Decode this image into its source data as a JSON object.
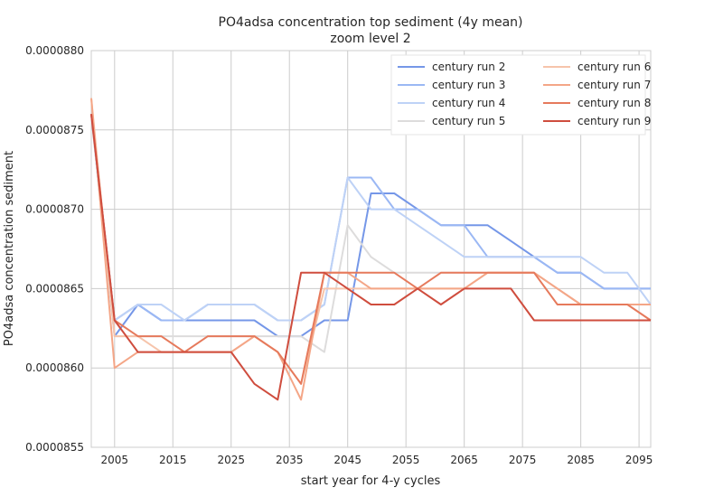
{
  "chart_data": {
    "type": "line",
    "title": "PO4adsa concentration top sediment (4y mean)",
    "subtitle": "zoom level 2",
    "xlabel": "start year for 4-y cycles",
    "ylabel": "PO4adsa concentration sediment",
    "xlim": [
      2001,
      2097
    ],
    "ylim": [
      8.55e-05,
      8.8e-05
    ],
    "x_ticks": [
      2005,
      2015,
      2025,
      2035,
      2045,
      2055,
      2065,
      2075,
      2085,
      2095
    ],
    "y_ticks": [
      8.55e-05,
      8.6e-05,
      8.65e-05,
      8.7e-05,
      8.75e-05,
      8.8e-05
    ],
    "x_tick_labels": [
      "2005",
      "2015",
      "2025",
      "2035",
      "2045",
      "2055",
      "2065",
      "2075",
      "2085",
      "2095"
    ],
    "y_tick_labels": [
      "0.0000855",
      "0.0000860",
      "0.0000865",
      "0.0000870",
      "0.0000875",
      "0.0000880"
    ],
    "grid": true,
    "legend_position": "top-right",
    "x": [
      2001,
      2005,
      2009,
      2013,
      2017,
      2021,
      2025,
      2029,
      2033,
      2037,
      2041,
      2045,
      2049,
      2053,
      2057,
      2061,
      2065,
      2069,
      2073,
      2077,
      2081,
      2085,
      2089,
      2093,
      2097
    ],
    "series": [
      {
        "name": "century run 2",
        "color": "#7597e8",
        "values": [
          8.76e-05,
          8.62e-05,
          8.64e-05,
          8.63e-05,
          8.63e-05,
          8.63e-05,
          8.63e-05,
          8.63e-05,
          8.62e-05,
          8.62e-05,
          8.63e-05,
          8.63e-05,
          8.71e-05,
          8.71e-05,
          8.7e-05,
          8.69e-05,
          8.69e-05,
          8.69e-05,
          8.68e-05,
          8.67e-05,
          8.66e-05,
          8.66e-05,
          8.65e-05,
          8.65e-05,
          8.65e-05
        ]
      },
      {
        "name": "century run 3",
        "color": "#9bb8f4",
        "values": [
          8.76e-05,
          8.63e-05,
          8.64e-05,
          8.63e-05,
          8.63e-05,
          8.64e-05,
          8.64e-05,
          8.64e-05,
          8.63e-05,
          8.63e-05,
          8.64e-05,
          8.72e-05,
          8.72e-05,
          8.7e-05,
          8.7e-05,
          8.69e-05,
          8.69e-05,
          8.67e-05,
          8.67e-05,
          8.67e-05,
          8.66e-05,
          8.66e-05,
          8.65e-05,
          8.65e-05,
          8.65e-05
        ]
      },
      {
        "name": "century run 4",
        "color": "#bed2f6",
        "values": [
          8.76e-05,
          8.63e-05,
          8.64e-05,
          8.64e-05,
          8.63e-05,
          8.64e-05,
          8.64e-05,
          8.64e-05,
          8.63e-05,
          8.63e-05,
          8.64e-05,
          8.72e-05,
          8.7e-05,
          8.7e-05,
          8.69e-05,
          8.68e-05,
          8.67e-05,
          8.67e-05,
          8.67e-05,
          8.67e-05,
          8.67e-05,
          8.67e-05,
          8.66e-05,
          8.66e-05,
          8.64e-05
        ]
      },
      {
        "name": "century run 5",
        "color": "#dddcdc",
        "values": [
          8.76e-05,
          8.62e-05,
          8.62e-05,
          8.62e-05,
          8.62e-05,
          8.62e-05,
          8.62e-05,
          8.62e-05,
          8.62e-05,
          8.62e-05,
          8.61e-05,
          8.69e-05,
          8.67e-05,
          8.66e-05,
          8.66e-05,
          8.66e-05,
          8.66e-05,
          8.66e-05,
          8.66e-05,
          8.66e-05,
          8.65e-05,
          8.64e-05,
          8.64e-05,
          8.64e-05,
          8.64e-05
        ]
      },
      {
        "name": "century run 6",
        "color": "#f6c4ab",
        "values": [
          8.77e-05,
          8.62e-05,
          8.62e-05,
          8.61e-05,
          8.61e-05,
          8.61e-05,
          8.61e-05,
          8.62e-05,
          8.61e-05,
          8.59e-05,
          8.65e-05,
          8.65e-05,
          8.65e-05,
          8.65e-05,
          8.65e-05,
          8.65e-05,
          8.65e-05,
          8.66e-05,
          8.66e-05,
          8.66e-05,
          8.65e-05,
          8.64e-05,
          8.64e-05,
          8.64e-05,
          8.64e-05
        ]
      },
      {
        "name": "century run 7",
        "color": "#f4a687",
        "values": [
          8.77e-05,
          8.6e-05,
          8.61e-05,
          8.61e-05,
          8.61e-05,
          8.61e-05,
          8.61e-05,
          8.62e-05,
          8.61e-05,
          8.58e-05,
          8.66e-05,
          8.66e-05,
          8.65e-05,
          8.65e-05,
          8.65e-05,
          8.65e-05,
          8.65e-05,
          8.66e-05,
          8.66e-05,
          8.66e-05,
          8.65e-05,
          8.64e-05,
          8.64e-05,
          8.64e-05,
          8.64e-05
        ]
      },
      {
        "name": "century run 8",
        "color": "#e67a5c",
        "values": [
          8.76e-05,
          8.63e-05,
          8.62e-05,
          8.62e-05,
          8.61e-05,
          8.62e-05,
          8.62e-05,
          8.62e-05,
          8.61e-05,
          8.59e-05,
          8.66e-05,
          8.66e-05,
          8.66e-05,
          8.66e-05,
          8.65e-05,
          8.66e-05,
          8.66e-05,
          8.66e-05,
          8.66e-05,
          8.66e-05,
          8.64e-05,
          8.64e-05,
          8.64e-05,
          8.64e-05,
          8.63e-05
        ]
      },
      {
        "name": "century run 9",
        "color": "#cf4d3e",
        "values": [
          8.76e-05,
          8.63e-05,
          8.61e-05,
          8.61e-05,
          8.61e-05,
          8.61e-05,
          8.61e-05,
          8.59e-05,
          8.58e-05,
          8.66e-05,
          8.66e-05,
          8.65e-05,
          8.64e-05,
          8.64e-05,
          8.65e-05,
          8.64e-05,
          8.65e-05,
          8.65e-05,
          8.65e-05,
          8.63e-05,
          8.63e-05,
          8.63e-05,
          8.63e-05,
          8.63e-05,
          8.63e-05
        ]
      }
    ]
  }
}
